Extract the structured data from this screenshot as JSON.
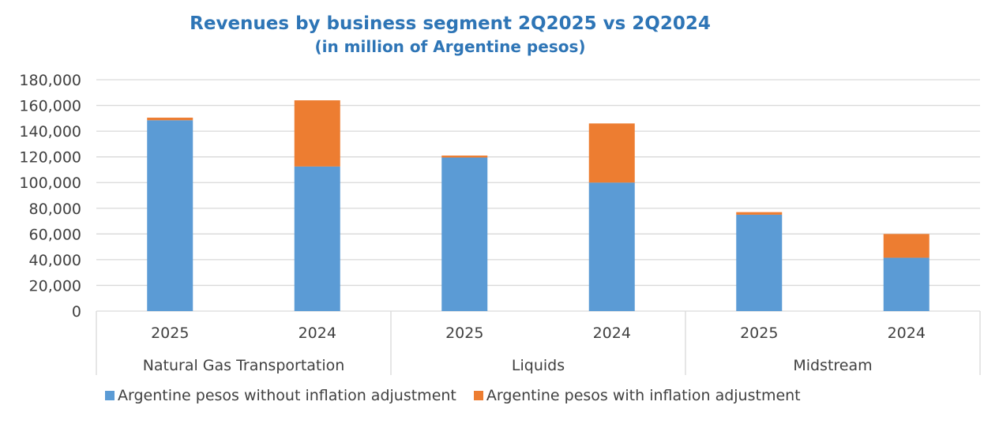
{
  "chart_data": {
    "type": "bar",
    "stacked": true,
    "title": "Revenues by business segment 2Q2025 vs 2Q2024",
    "subtitle": "(in million of Argentine pesos)",
    "ylim": [
      0,
      180000
    ],
    "yticks": [
      "0",
      "20,000",
      "40,000",
      "60,000",
      "80,000",
      "100,000",
      "120,000",
      "140,000",
      "160,000",
      "180,000"
    ],
    "grid": true,
    "legend_position": "bottom",
    "groups": [
      {
        "name": "Natural Gas Transportation",
        "categories": [
          "2025",
          "2024"
        ]
      },
      {
        "name": "Liquids",
        "categories": [
          "2025",
          "2024"
        ]
      },
      {
        "name": "Midstream",
        "categories": [
          "2025",
          "2024"
        ]
      }
    ],
    "series": [
      {
        "name": "Argentine pesos without inflation adjustment",
        "color": "#5B9BD5",
        "values": [
          148500,
          112500,
          119500,
          100000,
          75000,
          41500
        ]
      },
      {
        "name": "Argentine pesos with inflation adjustment",
        "color": "#ED7D31",
        "values": [
          2000,
          51500,
          1500,
          46000,
          2000,
          18500
        ]
      }
    ]
  }
}
